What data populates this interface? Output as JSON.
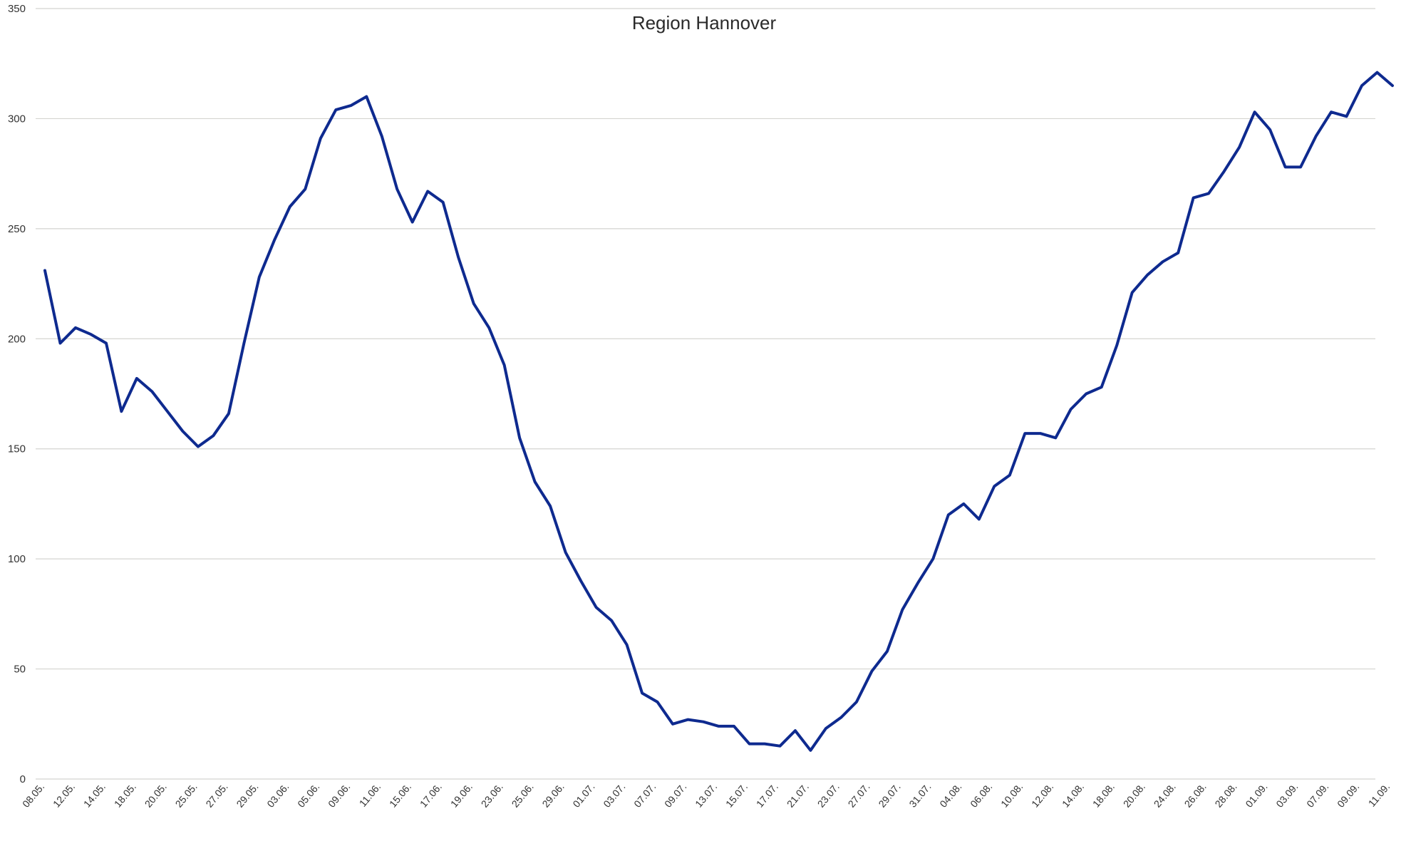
{
  "chart_data": {
    "type": "line",
    "title": "Region Hannover",
    "xlabel": "",
    "ylabel": "",
    "ylim": [
      0,
      350
    ],
    "yticks": [
      0,
      50,
      100,
      150,
      200,
      250,
      300,
      350
    ],
    "grid": true,
    "legend": "none",
    "colors": {
      "line": "#0e2a8f",
      "grid": "#d4d4d0"
    },
    "x_tick_labels": [
      "08.05.",
      "12.05.",
      "14.05.",
      "18.05.",
      "20.05.",
      "25.05.",
      "27.05.",
      "29.05.",
      "03.06.",
      "05.06.",
      "09.06.",
      "11.06.",
      "15.06.",
      "17.06.",
      "19.06.",
      "23.06.",
      "25.06.",
      "29.06.",
      "01.07.",
      "03.07.",
      "07.07.",
      "09.07.",
      "13.07.",
      "15.07.",
      "17.07.",
      "21.07.",
      "23.07.",
      "27.07.",
      "29.07.",
      "31.07.",
      "04.08.",
      "06.08.",
      "10.08.",
      "12.08.",
      "14.08.",
      "18.08.",
      "20.08.",
      "24.08.",
      "26.08.",
      "28.08.",
      "01.09.",
      "03.09.",
      "07.09.",
      "09.09.",
      "11.09."
    ],
    "series": [
      {
        "values": [
          231,
          198,
          205,
          202,
          198,
          167,
          182,
          176,
          167,
          158,
          151,
          156,
          166,
          198,
          228,
          245,
          260,
          268,
          291,
          304,
          306,
          310,
          292,
          268,
          253,
          267,
          262,
          237,
          216,
          205,
          188,
          155,
          135,
          124,
          103,
          90,
          78,
          72,
          61,
          39,
          35,
          25,
          27,
          26,
          24,
          24,
          16,
          16,
          15,
          22,
          13,
          23,
          28,
          35,
          49,
          58,
          77,
          89,
          100,
          120,
          125,
          118,
          133,
          138,
          157,
          157,
          155,
          168,
          175,
          178,
          197,
          221,
          229,
          235,
          239,
          264,
          266,
          276,
          287,
          303,
          295,
          278,
          278,
          292,
          303,
          301,
          315,
          321,
          315
        ]
      }
    ]
  }
}
